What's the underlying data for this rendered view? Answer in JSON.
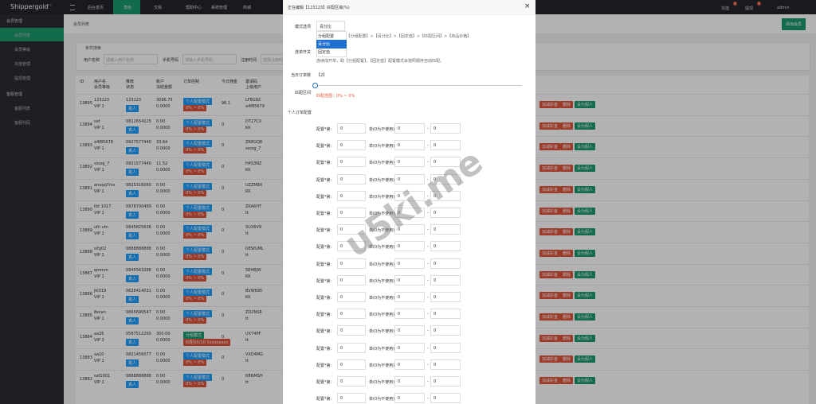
{
  "topbar": {
    "brand": "Shippergold",
    "version": "V4.0",
    "nav": [
      "后台首页",
      "角色",
      "交易",
      "帮助中心",
      "系统管理",
      "商城"
    ],
    "right": [
      "充值",
      "提现",
      "admin"
    ],
    "badges": [
      "1",
      "1"
    ]
  },
  "sidebar": {
    "groups": [
      {
        "title": "会员管理",
        "items": [
          "会员列表",
          "会员等级",
          "充值管理",
          "提现管理"
        ]
      },
      {
        "title": "客服管理",
        "items": [
          "客服列表",
          "客服代码"
        ]
      }
    ]
  },
  "tab": "会员列表",
  "add_button": "添加会员",
  "search": {
    "title": "条件搜索",
    "fields": [
      {
        "label": "用户名称",
        "placeholder": "请输入用户名称"
      },
      {
        "label": "手机号码",
        "placeholder": "请输入手机号码"
      },
      {
        "label": "注册时间",
        "placeholder": "选择注册时间"
      }
    ]
  },
  "table": {
    "headers": [
      "ID",
      "用户名\n会员等级",
      "推荐\n状态",
      "账户\n冻结金额",
      "订单控制",
      "今日佣金",
      "邀请码\n上级用户"
    ],
    "rows": [
      [
        "13895",
        "123123",
        "VIP 1",
        "123123",
        "真人",
        "3096.75",
        "0.0000",
        "个人配置模式",
        "0% ~ 0%",
        "96.1",
        "LF8G92",
        "a4f85679",
        "加减彩金",
        "删除",
        "设为假人"
      ],
      [
        "13894",
        "saf",
        "VIP 1",
        "0812654125",
        "真人",
        "0.00",
        "0.0000",
        "个人配置模式",
        "0% ~ 0%",
        "0",
        "DT27CX",
        "KK",
        "加减彩金",
        "删除",
        "设为假人"
      ],
      [
        "13893",
        "a4f85678",
        "VIP 1",
        "0927577440",
        "真人",
        "33.64",
        "0.0000",
        "个人配置模式",
        "0% ~ 0%",
        "0",
        "ZR8GQ8",
        "ssssg_7",
        "加减彩金",
        "删除",
        "设为假人"
      ],
      [
        "13892",
        "ssssg_7",
        "VIP 1",
        "0921577440",
        "真人",
        "11.52",
        "0.0000",
        "个人配置模式",
        "0% ~ 0%",
        "0",
        "H4S3NZ",
        "KK",
        "加减彩金",
        "删除",
        "设为假人"
      ],
      [
        "13891",
        "anuqq7ms",
        "VIP 1",
        "0825316060",
        "真人",
        "0.00",
        "0.0000",
        "个人配置模式",
        "0% ~ 0%",
        "0",
        "UZZM8X",
        "KK",
        "加减彩金",
        "删除",
        "设为假人"
      ],
      [
        "13890",
        "tbt 1017",
        "VIP 1",
        "0978700489",
        "真人",
        "0.00",
        "0.0000",
        "个人配置模式",
        "0% ~ 0%",
        "0",
        "ZKA6HT",
        "tt",
        "加减彩金",
        "删除",
        "设为假人"
      ],
      [
        "13889",
        "ufn ufn",
        "VIP 1",
        "0845825636",
        "真人",
        "0.00",
        "0.0000",
        "个人配置模式",
        "0% ~ 0%",
        "0",
        "SUX6V9",
        "tt",
        "加减彩金",
        "删除",
        "设为假人"
      ],
      [
        "13888",
        "sifg02",
        "VIP 1",
        "0888888888",
        "真人",
        "0.00",
        "0.0000",
        "个人配置模式",
        "0% ~ 0%",
        "0",
        "DEWUML",
        "tt",
        "加减彩金",
        "删除",
        "设为假人"
      ],
      [
        "13887",
        "qmmm",
        "VIP 1",
        "0845563288",
        "真人",
        "0.00",
        "0.0000",
        "个人配置模式",
        "0% ~ 0%",
        "0",
        "5EH8JW",
        "KK",
        "加减彩金",
        "删除",
        "设为假人"
      ],
      [
        "13886",
        "jkl319",
        "VIP 1",
        "0628414031",
        "真人",
        "0.00",
        "0.0000",
        "个人配置模式",
        "0% ~ 0%",
        "0",
        "BVW895",
        "KK",
        "加减彩金",
        "删除",
        "设为假人"
      ],
      [
        "13885",
        "8scan",
        "VIP 1",
        "0865690547",
        "真人",
        "0.00",
        "0.0000",
        "个人配置模式",
        "0% ~ 0%",
        "0",
        "ZD2NSR",
        "tt",
        "加减彩金",
        "删除",
        "设为假人"
      ],
      [
        "13884",
        "aa26",
        "VIP 3",
        "0587512265",
        "真人",
        "300.00",
        "0.0000",
        "分组模式",
        "匹配XX/10 5xxxxxxxx",
        "0",
        "UX74PF",
        "tt",
        "加减彩金",
        "删除",
        "设为假人"
      ],
      [
        "13883",
        "aa10",
        "VIP 1",
        "0821456077",
        "真人",
        "0.00",
        "0.0000",
        "个人配置模式",
        "0% ~ 0%",
        "0",
        "VXD4MG",
        "tt",
        "加减彩金",
        "删除",
        "设为假人"
      ],
      [
        "13882",
        "saf1001",
        "VIP 1",
        "0888888888",
        "真人",
        "0.00",
        "0.0000",
        "个人配置模式",
        "0% ~ 0%",
        "0",
        "KBNMSH",
        "tt",
        "加减彩金",
        "删除",
        "设为假人"
      ]
    ]
  },
  "modal": {
    "title": "正在编辑【123123】匹配区域(%)",
    "close": "×",
    "mode_label": "模式选项",
    "mode_value": "百分比",
    "options": [
      "分组配置",
      "百分比",
      "固定值"
    ],
    "mode_desc": "匹配规则为：【分组配置】>【百分比】>【固定值】>【匹配区间】>【商品价格】",
    "chain_label": "连单开关",
    "chain_desc": "连续成开单，取【分组配置】，【固定值】配置模式会按照顺序自动匹配。",
    "orders_label": "当日订单数",
    "orders_value": "【2】",
    "range_label": "匹配区间",
    "range_value": "匹配范围：0% ~ 0%",
    "personal_label": "个人订单配置",
    "config_rows": [
      {
        "label": "配置*第:",
        "value": "0",
        "note": "单(0为不使用)",
        "min": "0",
        "sep": "-",
        "max": "0"
      },
      {
        "label": "配置*第:",
        "value": "0",
        "note": "单(0为不使用)",
        "min": "0",
        "sep": "-",
        "max": "0"
      },
      {
        "label": "配置*第:",
        "value": "0",
        "note": "单(0为不使用)",
        "min": "0",
        "sep": "-",
        "max": "0"
      },
      {
        "label": "配置*第:",
        "value": "0",
        "note": "单(0为不使用)",
        "min": "0",
        "sep": "-",
        "max": "0"
      },
      {
        "label": "配置*第:",
        "value": "0",
        "note": "单(0为不使用)",
        "min": "0",
        "sep": "-",
        "max": "0"
      },
      {
        "label": "配置*第:",
        "value": "0",
        "note": "单(0为不使用)",
        "min": "0",
        "sep": "-",
        "max": "0"
      },
      {
        "label": "配置*第:",
        "value": "0",
        "note": "单(0为不使用)",
        "min": "0",
        "sep": "-",
        "max": "0"
      },
      {
        "label": "配置*第:",
        "value": "0",
        "note": "单(0为不使用)",
        "min": "0",
        "sep": "-",
        "max": "0"
      },
      {
        "label": "配置*第:",
        "value": "0",
        "note": "单(0为不使用)",
        "min": "0",
        "sep": "-",
        "max": "0"
      },
      {
        "label": "配置*第:",
        "value": "0",
        "note": "单(0为不使用)",
        "min": "0",
        "sep": "-",
        "max": "0"
      },
      {
        "label": "配置*第:",
        "value": "0",
        "note": "单(0为不使用)",
        "min": "0",
        "sep": "-",
        "max": "0"
      },
      {
        "label": "配置*第:",
        "value": "0",
        "note": "单(0为不使用)",
        "min": "0",
        "sep": "-",
        "max": "0"
      },
      {
        "label": "配置*第:",
        "value": "0",
        "note": "单(0为不使用)",
        "min": "0",
        "sep": "-",
        "max": "0"
      },
      {
        "label": "配置*第:",
        "value": "0",
        "note": "单(0为不使用)",
        "min": "0",
        "sep": "-",
        "max": "0"
      },
      {
        "label": "配置*第:",
        "value": "0",
        "note": "单(0为不使用)",
        "min": "0",
        "sep": "-",
        "max": "0"
      },
      {
        "label": "配置*第:",
        "value": "0",
        "note": "单(0为不使用)",
        "min": "0",
        "sep": "-",
        "max": "0"
      },
      {
        "label": "配置*第:",
        "value": "0",
        "note": "单(0为不使用)",
        "min": "0",
        "sep": "-",
        "max": "0"
      }
    ]
  },
  "watermark": "u5ki.me"
}
